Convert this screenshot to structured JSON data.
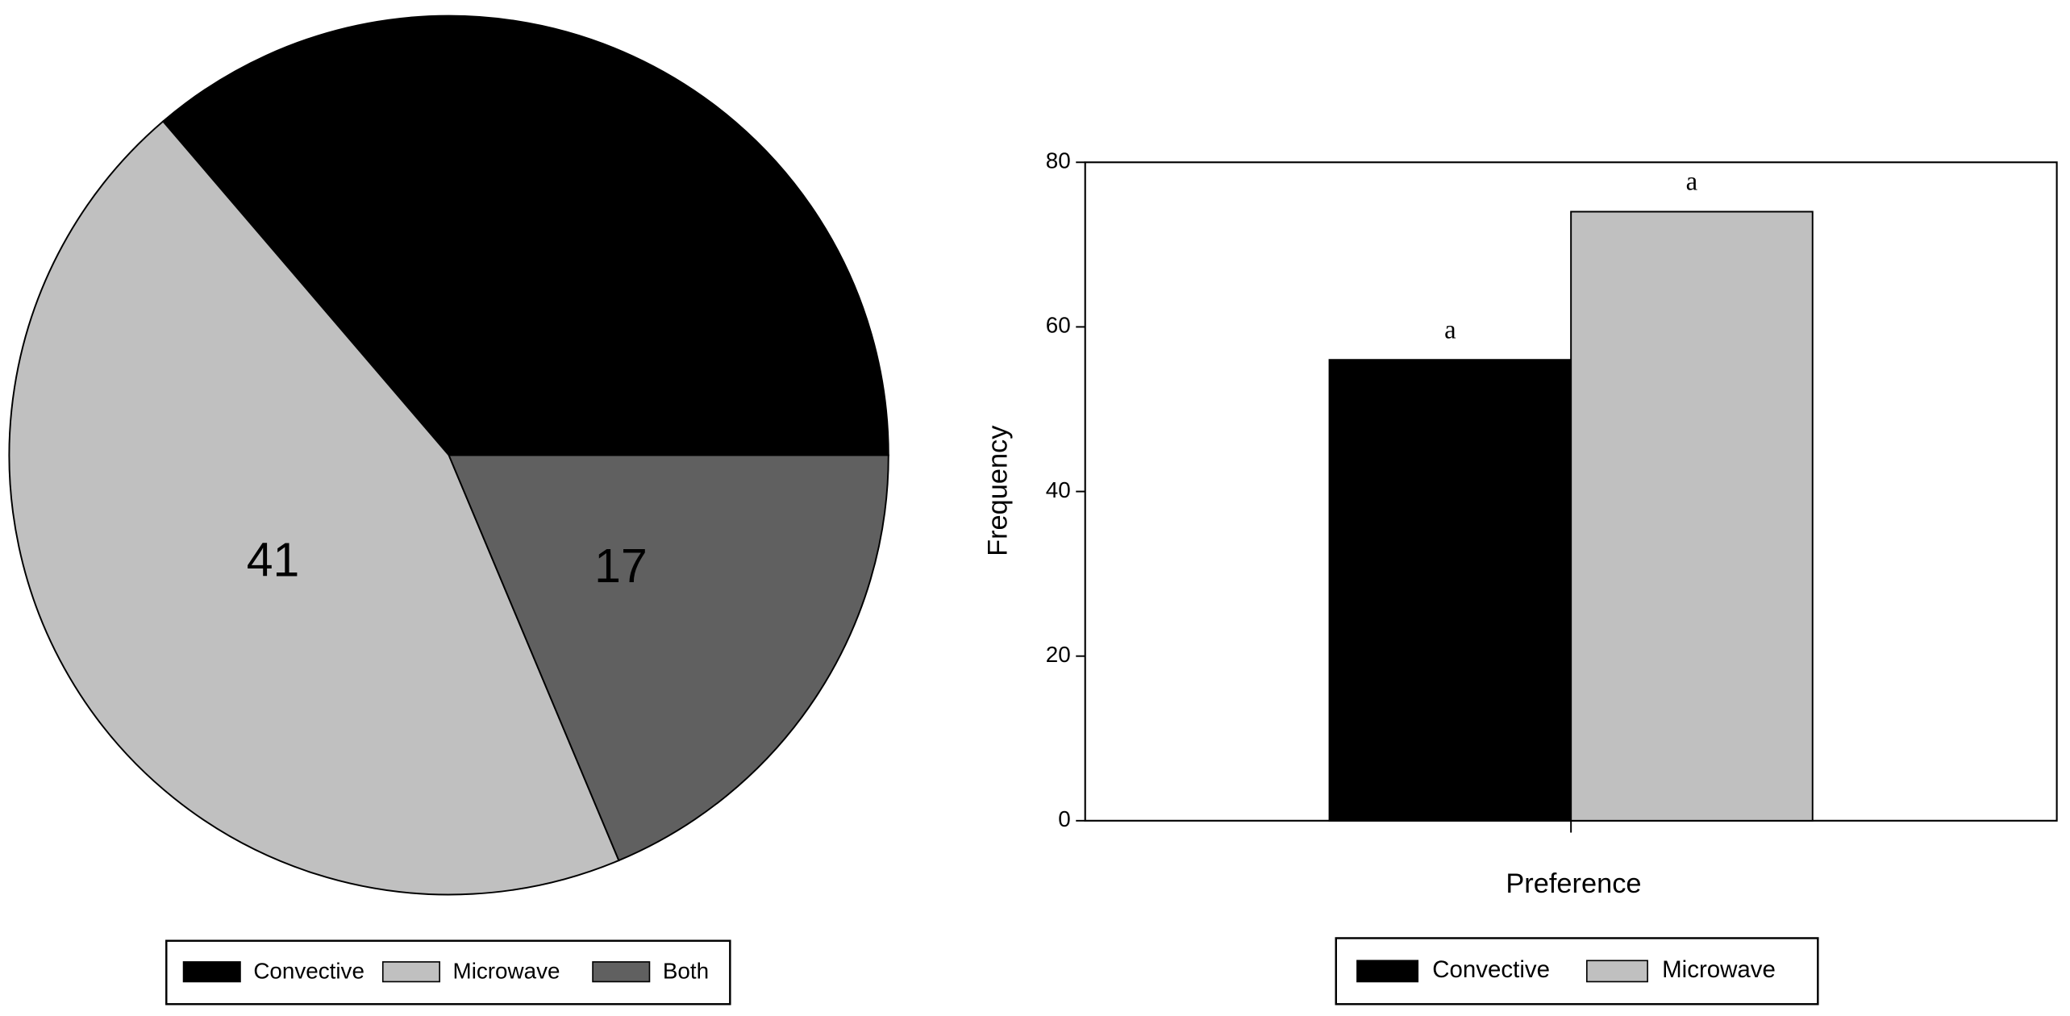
{
  "chart_data": [
    {
      "type": "pie",
      "categories": [
        "Convective",
        "Microwave",
        "Both"
      ],
      "values": [
        33,
        41,
        17
      ],
      "colors": [
        "#000000",
        "#c0c0c0",
        "#606060"
      ],
      "label_colors": [
        "#ffffff",
        "#000000",
        "#ffffff"
      ]
    },
    {
      "type": "bar",
      "xlabel": "Preference",
      "ylabel": "Frequency",
      "categories": [
        null
      ],
      "series": [
        {
          "name": "Convective",
          "color": "#000000",
          "values": [
            56
          ],
          "annotations": [
            "a"
          ]
        },
        {
          "name": "Microwave",
          "color": "#c0c0c0",
          "values": [
            74
          ],
          "annotations": [
            "a"
          ]
        }
      ],
      "ylim": [
        0,
        80
      ],
      "yticks": [
        0,
        20,
        40,
        60,
        80
      ],
      "grid": false
    }
  ]
}
